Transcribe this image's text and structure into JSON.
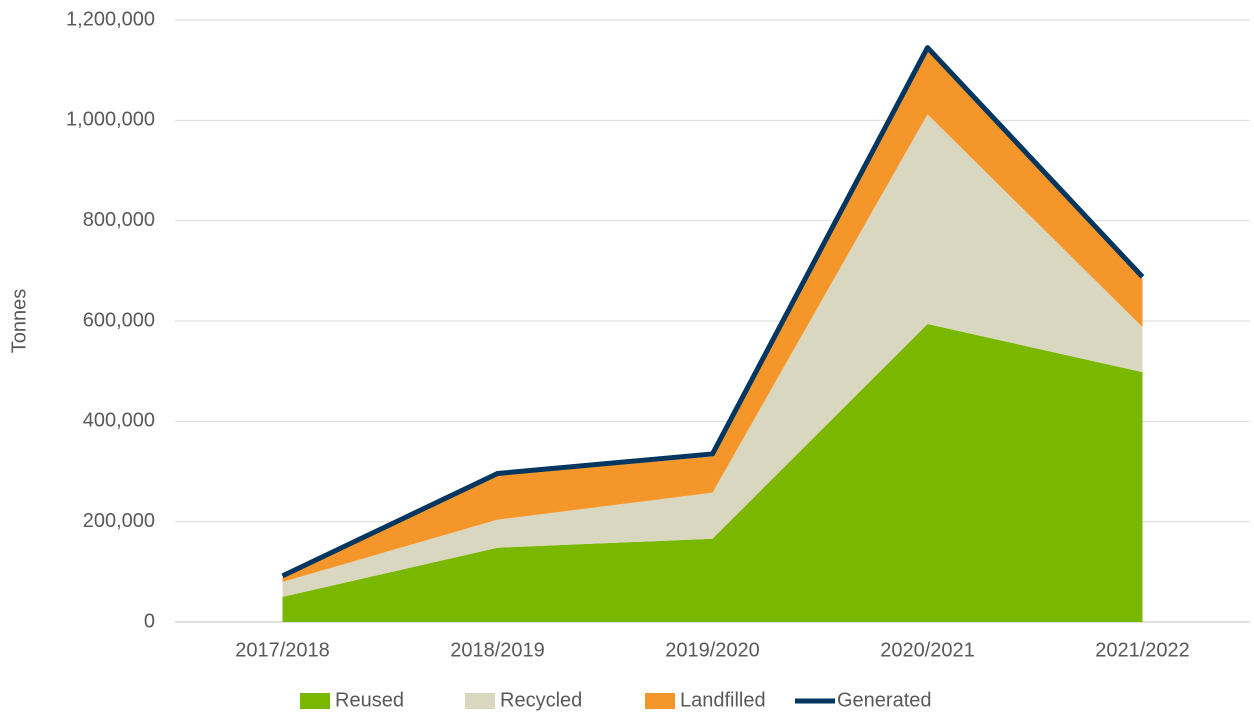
{
  "chart_data": {
    "type": "stacked_area",
    "y_label": "Tonnes",
    "categories": [
      "2017/2018",
      "2018/2019",
      "2019/2020",
      "2020/2021",
      "2021/2022"
    ],
    "series": [
      {
        "name": "Reused",
        "color": "#7ab800",
        "values": [
          50000,
          148000,
          166000,
          594000,
          498000
        ]
      },
      {
        "name": "Recycled",
        "color": "#d9d7bf",
        "values": [
          30000,
          56000,
          92000,
          418000,
          90000
        ]
      },
      {
        "name": "Landfilled",
        "color": "#f5962a",
        "values": [
          10000,
          88000,
          72000,
          128000,
          95000
        ]
      }
    ],
    "line_series": {
      "name": "Generated",
      "color": "#003660",
      "values": [
        92000,
        296000,
        335000,
        1145000,
        688000
      ]
    },
    "ylim": [
      0,
      1200000
    ],
    "yticks": [
      {
        "value": 0,
        "label": "0"
      },
      {
        "value": 200000,
        "label": "200,000"
      },
      {
        "value": 400000,
        "label": "400,000"
      },
      {
        "value": 600000,
        "label": "600,000"
      },
      {
        "value": 800000,
        "label": "800,000"
      },
      {
        "value": 1000000,
        "label": "1,000,000"
      },
      {
        "value": 1200000,
        "label": "1,200,000"
      }
    ],
    "grid": true
  }
}
